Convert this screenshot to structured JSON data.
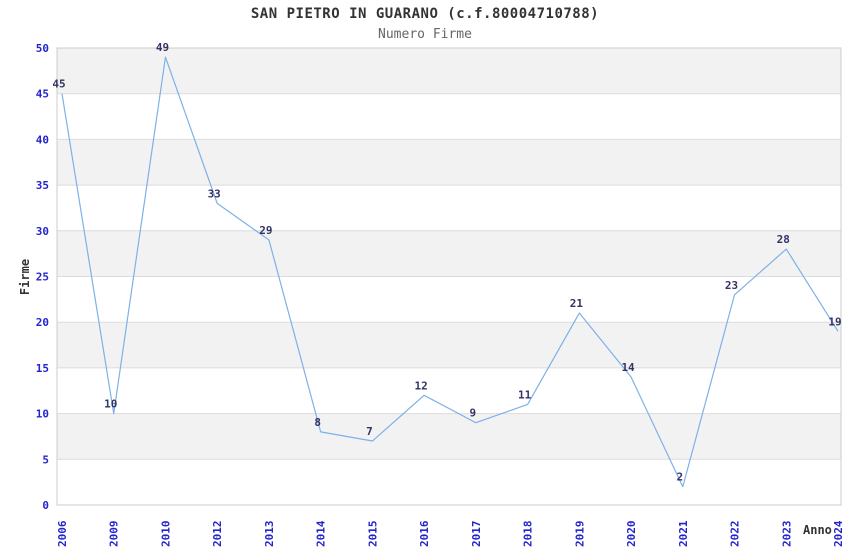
{
  "title": "SAN PIETRO IN GUARANO (c.f.80004710788)",
  "subtitle": "Numero Firme",
  "chart_data": {
    "type": "line",
    "title": "SAN PIETRO IN GUARANO (c.f.80004710788)",
    "subtitle": "Numero Firme",
    "categories": [
      "2006",
      "2009",
      "2010",
      "2012",
      "2013",
      "2014",
      "2015",
      "2016",
      "2017",
      "2018",
      "2019",
      "2020",
      "2021",
      "2022",
      "2023",
      "2024"
    ],
    "values": [
      45,
      10,
      49,
      33,
      29,
      8,
      7,
      12,
      9,
      11,
      21,
      14,
      2,
      23,
      28,
      19
    ],
    "xlabel": "Anno",
    "ylabel": "Firme",
    "ylim": [
      0,
      50
    ],
    "yticks": [
      0,
      5,
      10,
      15,
      20,
      25,
      30,
      35,
      40,
      45,
      50
    ],
    "grid": true,
    "banding": "alternating horizontal gray bands every 5 units (gray on 5-10, 15-20, 25-30, 35-40, 45-50)",
    "legend": "none",
    "data_labels": "shown above each point",
    "x_tick_rotation": -90,
    "colors": {
      "line": "#7db1e8",
      "tick_labels": "#2424cc",
      "data_labels": "#333366",
      "band_gray": "#f2f2f2",
      "gridline": "#dcdcdc",
      "plot_border": "#cccccc",
      "title_text": "#333333",
      "subtitle_text": "#666666",
      "axis_label_text": "#333333",
      "background": "#ffffff"
    }
  }
}
